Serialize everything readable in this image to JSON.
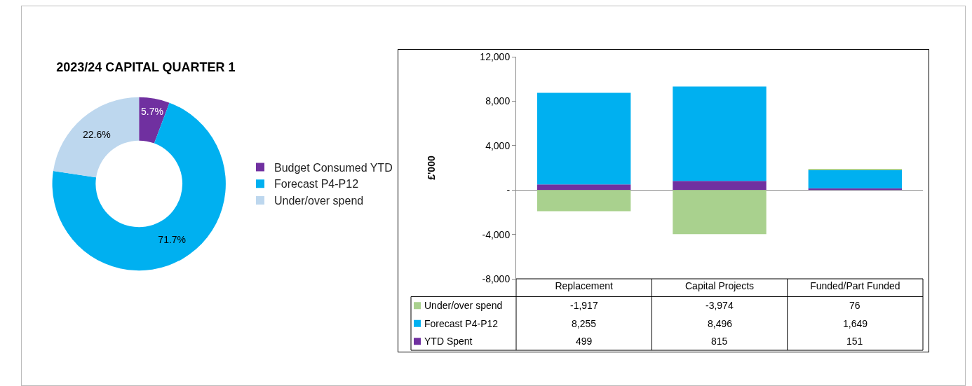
{
  "chart_data": [
    {
      "type": "donut",
      "title": "2023/24 CAPITAL QUARTER 1",
      "categories": [
        "Budget Consumed YTD",
        "Forecast P4-P12",
        "Under/over spend"
      ],
      "values": [
        5.7,
        71.7,
        22.6
      ],
      "colors": [
        "#7030a0",
        "#00b0f0",
        "#bdd7ee"
      ],
      "value_labels": [
        "5.7%",
        "71.7%",
        "22.6%"
      ],
      "legend": "right"
    },
    {
      "type": "bar",
      "stacked": true,
      "categories": [
        "Replacement",
        "Capital Projects",
        "Funded/Part Funded"
      ],
      "series": [
        {
          "name": "YTD Spent",
          "color": "#7030a0",
          "values": [
            499,
            815,
            151
          ],
          "value_labels": [
            "499",
            "815",
            "151"
          ]
        },
        {
          "name": "Forecast P4-P12",
          "color": "#00b0f0",
          "values": [
            8255,
            8496,
            1649
          ],
          "value_labels": [
            "8,255",
            "8,496",
            "1,649"
          ]
        },
        {
          "name": "Under/over spend",
          "color": "#a9d18e",
          "values": [
            -1917,
            -3974,
            76
          ],
          "value_labels": [
            "-1,917",
            "-3,974",
            "76"
          ]
        }
      ],
      "ylabel": "£'000",
      "ylim": [
        -8000,
        12000
      ],
      "yticks": [
        {
          "value": -8000,
          "label": "-8,000"
        },
        {
          "value": -4000,
          "label": "-4,000"
        },
        {
          "value": 0,
          "label": "-"
        },
        {
          "value": 4000,
          "label": "4,000"
        },
        {
          "value": 8000,
          "label": "8,000"
        },
        {
          "value": 12000,
          "label": "12,000"
        }
      ],
      "legend": "bottom left"
    }
  ]
}
